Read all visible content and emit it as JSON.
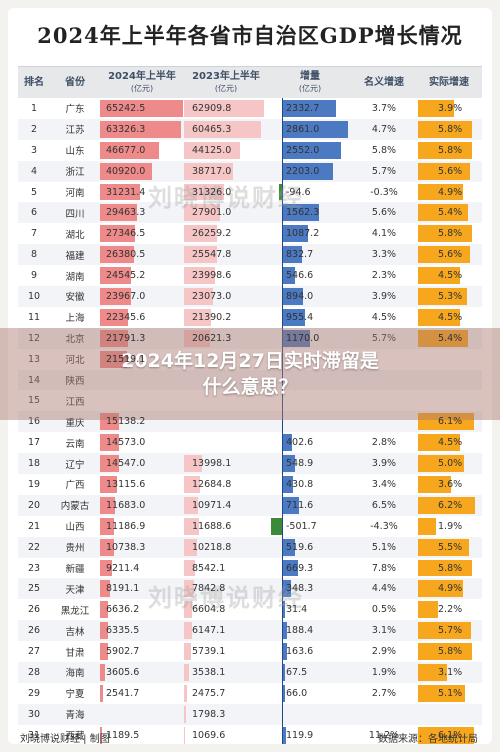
{
  "title": "2024年上半年各省市自治区GDP增长情况",
  "headline": [
    "2024年12月27日实时滞留是",
    "什么意思？"
  ],
  "columns": {
    "rank": "排名",
    "province": "省份",
    "gdp2024": "2024年上半年",
    "gdp2024_unit": "(亿元)",
    "gdp2023": "2023年上半年",
    "gdp2023_unit": "(亿元)",
    "increase": "增量",
    "increase_unit": "(亿元)",
    "nominal": "名义增速",
    "real": "实际增速"
  },
  "rows": [
    {
      "rank": "1",
      "province": "广东",
      "gdp2024": "65242.5",
      "gdp2023": "62909.8",
      "increase": "2332.7",
      "nominal": "3.7%",
      "real": "3.9%"
    },
    {
      "rank": "2",
      "province": "江苏",
      "gdp2024": "63326.3",
      "gdp2023": "60465.3",
      "increase": "2861.0",
      "nominal": "4.7%",
      "real": "5.8%"
    },
    {
      "rank": "3",
      "province": "山东",
      "gdp2024": "46677.0",
      "gdp2023": "44125.0",
      "increase": "2552.0",
      "nominal": "5.8%",
      "real": "5.8%"
    },
    {
      "rank": "4",
      "province": "浙江",
      "gdp2024": "40920.0",
      "gdp2023": "38717.0",
      "increase": "2203.0",
      "nominal": "5.7%",
      "real": "5.6%"
    },
    {
      "rank": "5",
      "province": "河南",
      "gdp2024": "31231.4",
      "gdp2023": "31326.0",
      "increase": "-94.6",
      "nominal": "-0.3%",
      "real": "4.9%"
    },
    {
      "rank": "6",
      "province": "四川",
      "gdp2024": "29463.3",
      "gdp2023": "27901.0",
      "increase": "1562.3",
      "nominal": "5.6%",
      "real": "5.4%"
    },
    {
      "rank": "7",
      "province": "湖北",
      "gdp2024": "27346.5",
      "gdp2023": "26259.2",
      "increase": "1087.2",
      "nominal": "4.1%",
      "real": "5.8%"
    },
    {
      "rank": "8",
      "province": "福建",
      "gdp2024": "26380.5",
      "gdp2023": "25547.8",
      "increase": "832.7",
      "nominal": "3.3%",
      "real": "5.6%"
    },
    {
      "rank": "9",
      "province": "湖南",
      "gdp2024": "24545.2",
      "gdp2023": "23998.6",
      "increase": "546.6",
      "nominal": "2.3%",
      "real": "4.5%"
    },
    {
      "rank": "10",
      "province": "安徽",
      "gdp2024": "23967.0",
      "gdp2023": "23073.0",
      "increase": "894.0",
      "nominal": "3.9%",
      "real": "5.3%"
    },
    {
      "rank": "11",
      "province": "上海",
      "gdp2024": "22345.6",
      "gdp2023": "21390.2",
      "increase": "955.4",
      "nominal": "4.5%",
      "real": "4.5%"
    },
    {
      "rank": "12",
      "province": "北京",
      "gdp2024": "21791.3",
      "gdp2023": "20621.3",
      "increase": "1170.0",
      "nominal": "5.7%",
      "real": "5.4%"
    },
    {
      "rank": "13",
      "province": "河北",
      "gdp2024": "21519.1",
      "gdp2023": "",
      "increase": "",
      "nominal": "",
      "real": ""
    },
    {
      "rank": "14",
      "province": "陕西",
      "gdp2024": "",
      "gdp2023": "",
      "increase": "",
      "nominal": "",
      "real": ""
    },
    {
      "rank": "15",
      "province": "江西",
      "gdp2024": "",
      "gdp2023": "",
      "increase": "",
      "nominal": "",
      "real": ""
    },
    {
      "rank": "16",
      "province": "重庆",
      "gdp2024": "15138.2",
      "gdp2023": "",
      "increase": "",
      "nominal": "",
      "real": "6.1%"
    },
    {
      "rank": "17",
      "province": "云南",
      "gdp2024": "14573.0",
      "gdp2023": "",
      "increase": "402.6",
      "nominal": "2.8%",
      "real": "4.5%"
    },
    {
      "rank": "18",
      "province": "辽宁",
      "gdp2024": "14547.0",
      "gdp2023": "13998.1",
      "increase": "548.9",
      "nominal": "3.9%",
      "real": "5.0%"
    },
    {
      "rank": "19",
      "province": "广西",
      "gdp2024": "13115.6",
      "gdp2023": "12684.8",
      "increase": "430.8",
      "nominal": "3.4%",
      "real": "3.6%"
    },
    {
      "rank": "20",
      "province": "内蒙古",
      "gdp2024": "11683.0",
      "gdp2023": "10971.4",
      "increase": "711.6",
      "nominal": "6.5%",
      "real": "6.2%"
    },
    {
      "rank": "21",
      "province": "山西",
      "gdp2024": "11186.9",
      "gdp2023": "11688.6",
      "increase": "-501.7",
      "nominal": "-4.3%",
      "real": "1.9%"
    },
    {
      "rank": "22",
      "province": "贵州",
      "gdp2024": "10738.3",
      "gdp2023": "10218.8",
      "increase": "519.6",
      "nominal": "5.1%",
      "real": "5.5%"
    },
    {
      "rank": "23",
      "province": "新疆",
      "gdp2024": "9211.4",
      "gdp2023": "8542.1",
      "increase": "669.3",
      "nominal": "7.8%",
      "real": "5.8%"
    },
    {
      "rank": "25",
      "province": "天津",
      "gdp2024": "8191.1",
      "gdp2023": "7842.8",
      "increase": "348.3",
      "nominal": "4.4%",
      "real": "4.9%"
    },
    {
      "rank": "26",
      "province": "黑龙江",
      "gdp2024": "6636.2",
      "gdp2023": "6604.8",
      "increase": "31.4",
      "nominal": "0.5%",
      "real": "2.2%"
    },
    {
      "rank": "26",
      "province": "吉林",
      "gdp2024": "6335.5",
      "gdp2023": "6147.1",
      "increase": "188.4",
      "nominal": "3.1%",
      "real": "5.7%"
    },
    {
      "rank": "27",
      "province": "甘肃",
      "gdp2024": "5902.7",
      "gdp2023": "5739.1",
      "increase": "163.6",
      "nominal": "2.9%",
      "real": "5.8%"
    },
    {
      "rank": "28",
      "province": "海南",
      "gdp2024": "3605.6",
      "gdp2023": "3538.1",
      "increase": "67.5",
      "nominal": "1.9%",
      "real": "3.1%"
    },
    {
      "rank": "29",
      "province": "宁夏",
      "gdp2024": "2541.7",
      "gdp2023": "2475.7",
      "increase": "66.0",
      "nominal": "2.7%",
      "real": "5.1%"
    },
    {
      "rank": "30",
      "province": "青海",
      "gdp2024": "",
      "gdp2023": "1798.3",
      "increase": "",
      "nominal": "",
      "real": ""
    },
    {
      "rank": "31",
      "province": "西藏",
      "gdp2024": "1189.5",
      "gdp2023": "1069.6",
      "increase": "119.9",
      "nominal": "11.2%",
      "real": "6.1%"
    }
  ],
  "footer": {
    "left": "刘晓博说财经 | 制图",
    "right": "数据来源：各地统计局"
  },
  "watermark": "刘晓博说财经",
  "colors": {
    "gdp2024_bar": "#ef8a8a",
    "gdp2023_bar": "#f6c6c6",
    "increase_positive": "#4b79c2",
    "increase_negative": "#3a8a3a",
    "real_bar": "#f6a71d"
  }
}
